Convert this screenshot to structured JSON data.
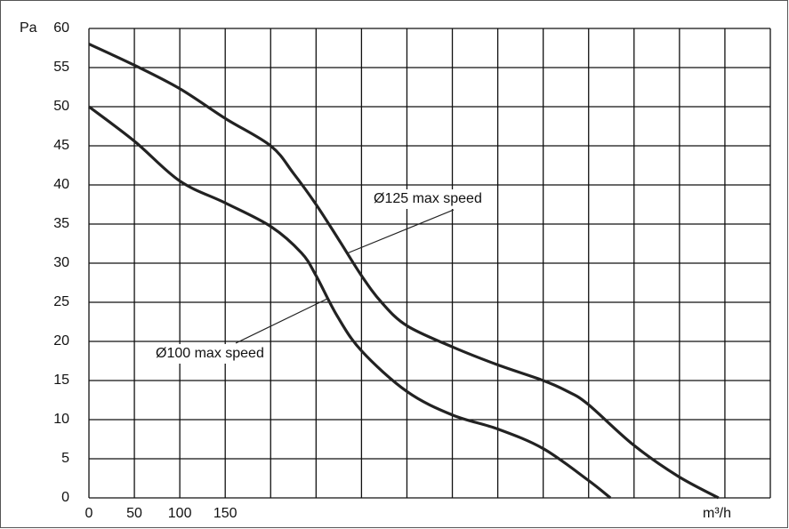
{
  "chart_data": {
    "type": "line",
    "x_label": "m³/h",
    "y_label": "Pa",
    "xlim": [
      0,
      750
    ],
    "ylim": [
      0,
      60
    ],
    "xticks": [
      0,
      50,
      100,
      150
    ],
    "xgrid": [
      0,
      50,
      100,
      150,
      200,
      250,
      300,
      350,
      400,
      450,
      500,
      550,
      600,
      650,
      700,
      750
    ],
    "yticks": [
      0,
      5,
      10,
      15,
      20,
      25,
      30,
      35,
      40,
      45,
      50,
      55,
      60
    ],
    "grid": true,
    "series": [
      {
        "name": "Ø125 max speed",
        "color": "#222222",
        "x": [
          0,
          50,
          100,
          150,
          200,
          225,
          250,
          275,
          300,
          322,
          350,
          400,
          450,
          500,
          527,
          549,
          599,
          648,
          693
        ],
        "values": [
          58,
          55.3,
          52.3,
          48.5,
          45,
          41.5,
          37.5,
          33,
          28.4,
          25,
          22,
          19.3,
          17,
          15,
          13.6,
          12,
          6.8,
          2.8,
          0
        ]
      },
      {
        "name": "Ø100 max speed",
        "color": "#222222",
        "x": [
          0,
          50,
          100,
          150,
          200,
          234,
          250,
          273,
          300,
          350,
          400,
          450,
          500,
          549,
          574
        ],
        "values": [
          50,
          45.6,
          40.5,
          37.7,
          34.7,
          31.3,
          28.4,
          23.3,
          18.8,
          13.6,
          10.6,
          8.8,
          6.3,
          2.3,
          0
        ]
      }
    ]
  }
}
